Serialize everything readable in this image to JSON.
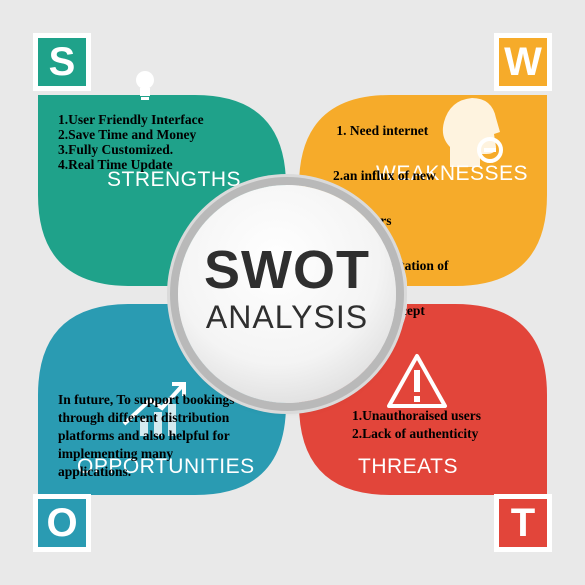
{
  "colors": {
    "strengths": "#1fa28a",
    "weaknesses": "#f6ab2a",
    "opportunities": "#2a9bb2",
    "threats": "#e2453a",
    "background": "#e9e9e9"
  },
  "corners": {
    "s": "S",
    "w": "W",
    "o": "O",
    "t": "T"
  },
  "center": {
    "title": "SWOT",
    "subtitle": "ANALYSIS"
  },
  "strengths": {
    "label": "STRENGTHS",
    "items": [
      "1.User Friendly Interface",
      "2.Save Time and Money",
      "3.Fully Customized.",
      "4.Real Time Update"
    ]
  },
  "weaknesses": {
    "label": "WEAKNESSES",
    "items": [
      " 1. Need internet",
      "2.an influx of new",
      "customers",
      "3.implementation of",
      "existing concept"
    ]
  },
  "opportunities": {
    "label": "OPPORTUNITIES",
    "text_lines": [
      "In future, To support bookings",
      "through different distribution",
      "platforms and also helpful for",
      "implementing many",
      "applications."
    ]
  },
  "threats": {
    "label": "THREATS",
    "items": [
      "1.Unauthoraised users",
      "2.Lack of authenticity"
    ]
  },
  "icons": {
    "strengths": "lightbulb-icon",
    "weaknesses": "head-minus-icon",
    "opportunities": "growth-chart-icon",
    "threats": "warning-triangle-icon"
  }
}
